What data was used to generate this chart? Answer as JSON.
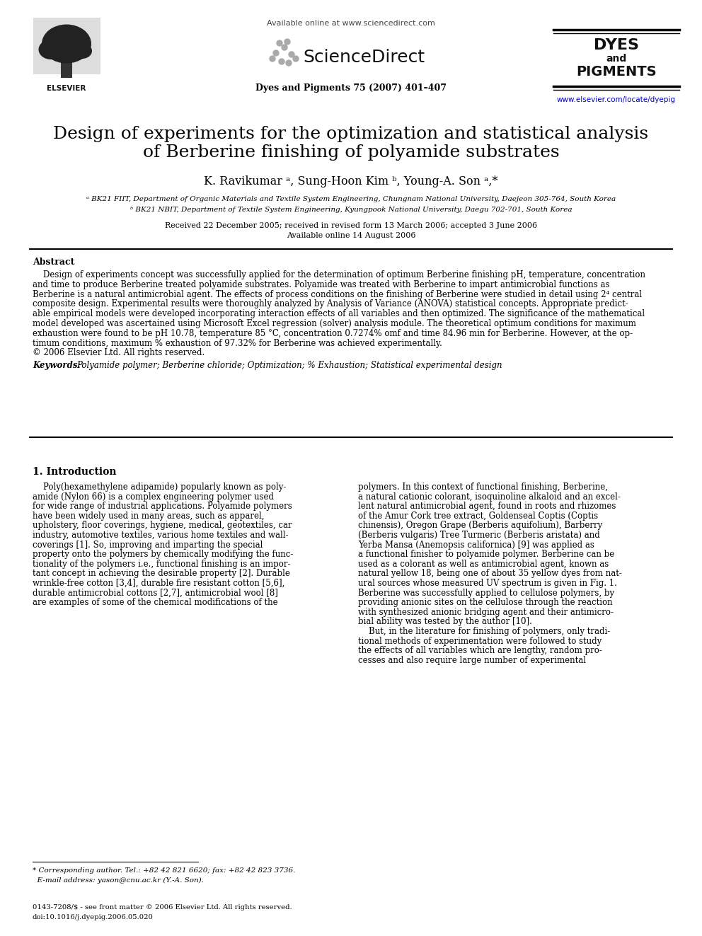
{
  "page_bg": "#ffffff",
  "header_available_online": "Available online at www.sciencedirect.com",
  "header_sciencedirect": "ScienceDirect",
  "header_journal": "Dyes and Pigments 75 (2007) 401–407",
  "header_url": "www.elsevier.com/locate/dyepig",
  "elsevier_text": "ELSEVIER",
  "dyes_line1": "DYES",
  "dyes_line2": "and",
  "dyes_line3": "PIGMENTS",
  "title_line1": "Design of experiments for the optimization and statistical analysis",
  "title_line2": "of Berberine finishing of polyamide substrates",
  "authors": "K. Ravikumar ᵃ, Sung-Hoon Kim ᵇ, Young-A. Son ᵃ,*",
  "affil_a": "ᵃ BK21 FIIT, Department of Organic Materials and Textile System Engineering, Chungnam National University, Daejeon 305-764, South Korea",
  "affil_b": "ᵇ BK21 NBIT, Department of Textile System Engineering, Kyungpook National University, Daegu 702-701, South Korea",
  "dates1": "Received 22 December 2005; received in revised form 13 March 2006; accepted 3 June 2006",
  "dates2": "Available online 14 August 2006",
  "abstract_head": "Abstract",
  "abstract_body": [
    "    Design of experiments concept was successfully applied for the determination of optimum Berberine finishing pH, temperature, concentration",
    "and time to produce Berberine treated polyamide substrates. Polyamide was treated with Berberine to impart antimicrobial functions as",
    "Berberine is a natural antimicrobial agent. The effects of process conditions on the finishing of Berberine were studied in detail using 2⁴ central",
    "composite design. Experimental results were thoroughly analyzed by Analysis of Variance (ANOVA) statistical concepts. Appropriate predict-",
    "able empirical models were developed incorporating interaction effects of all variables and then optimized. The significance of the mathematical",
    "model developed was ascertained using Microsoft Excel regression (solver) analysis module. The theoretical optimum conditions for maximum",
    "exhaustion were found to be pH 10.78, temperature 85 °C, concentration 0.7274% omf and time 84.96 min for Berberine. However, at the op-",
    "timum conditions, maximum % exhaustion of 97.32% for Berberine was achieved experimentally.",
    "© 2006 Elsevier Ltd. All rights reserved."
  ],
  "keywords_label": "Keywords:",
  "keywords_body": "Polyamide polymer; Berberine chloride; Optimization; % Exhaustion; Statistical experimental design",
  "section1": "1. Introduction",
  "intro_left": [
    "    Poly(hexamethylene adipamide) popularly known as poly-",
    "amide (Nylon 66) is a complex engineering polymer used",
    "for wide range of industrial applications. Polyamide polymers",
    "have been widely used in many areas, such as apparel,",
    "upholstery, floor coverings, hygiene, medical, geotextiles, car",
    "industry, automotive textiles, various home textiles and wall-",
    "coverings [1]. So, improving and imparting the special",
    "property onto the polymers by chemically modifying the func-",
    "tionality of the polymers i.e., functional finishing is an impor-",
    "tant concept in achieving the desirable property [2]. Durable",
    "wrinkle-free cotton [3,4], durable fire resistant cotton [5,6],",
    "durable antimicrobial cottons [2,7], antimicrobial wool [8]",
    "are examples of some of the chemical modifications of the"
  ],
  "intro_right": [
    "polymers. In this context of functional finishing, Berberine,",
    "a natural cationic colorant, isoquinoline alkaloid and an excel-",
    "lent natural antimicrobial agent, found in roots and rhizomes",
    "of the Amur Cork tree extract, Goldenseal Coptis (Coptis",
    "chinensis), Oregon Grape (Berberis aquifolium), Barberry",
    "(Berberis vulgaris) Tree Turmeric (Berberis aristata) and",
    "Yerba Mansa (Anemopsis californica) [9] was applied as",
    "a functional finisher to polyamide polymer. Berberine can be",
    "used as a colorant as well as antimicrobial agent, known as",
    "natural yellow 18, being one of about 35 yellow dyes from nat-",
    "ural sources whose measured UV spectrum is given in Fig. 1.",
    "Berberine was successfully applied to cellulose polymers, by",
    "providing anionic sites on the cellulose through the reaction",
    "with synthesized anionic bridging agent and their antimicro-",
    "bial ability was tested by the author [10].",
    "    But, in the literature for finishing of polymers, only tradi-",
    "tional methods of experimentation were followed to study",
    "the effects of all variables which are lengthy, random pro-",
    "cesses and also require large number of experimental"
  ],
  "footnote1": "* Corresponding author. Tel.: +82 42 821 6620; fax: +82 42 823 3736.",
  "footnote2": "  E-mail address: yason@cnu.ac.kr (Y.-A. Son).",
  "footer1": "0143-7208/$ - see front matter © 2006 Elsevier Ltd. All rights reserved.",
  "footer2": "doi:10.1016/j.dyepig.2006.05.020"
}
